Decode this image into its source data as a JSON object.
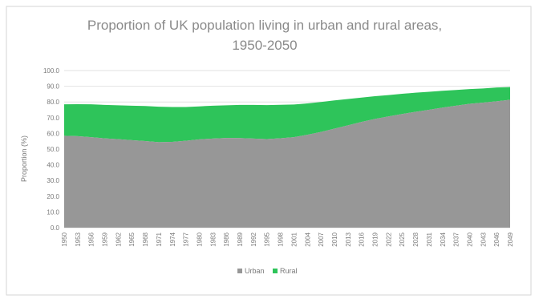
{
  "chart_data": {
    "type": "area",
    "stacked": true,
    "title": "Proportion of UK population living in urban and rural areas, 1950-2050",
    "title_lines": [
      "Proportion of UK population living in urban and rural areas,",
      "1950-2050"
    ],
    "xlabel": "",
    "ylabel": "Proportion (%)",
    "ylim": [
      0,
      100
    ],
    "yticks": [
      "0.0",
      "10.0",
      "20.0",
      "30.0",
      "40.0",
      "50.0",
      "60.0",
      "70.0",
      "80.0",
      "90.0",
      "100.0"
    ],
    "x": [
      1950,
      1953,
      1956,
      1959,
      1962,
      1965,
      1968,
      1971,
      1974,
      1977,
      1980,
      1983,
      1986,
      1989,
      1992,
      1995,
      1998,
      2001,
      2004,
      2007,
      2010,
      2013,
      2016,
      2019,
      2022,
      2025,
      2028,
      2031,
      2034,
      2037,
      2040,
      2043,
      2046,
      2049
    ],
    "series": [
      {
        "name": "Urban",
        "color": "#979797",
        "values": [
          58.5,
          58.2,
          57.6,
          56.8,
          56.3,
          55.7,
          55.1,
          54.4,
          54.6,
          55.3,
          56.2,
          56.7,
          57.1,
          57.0,
          56.7,
          56.4,
          56.9,
          57.6,
          59.1,
          60.9,
          63.0,
          65.1,
          67.3,
          69.2,
          70.8,
          72.3,
          73.7,
          75.0,
          76.4,
          77.6,
          78.8,
          79.6,
          80.4,
          81.4
        ]
      },
      {
        "name": "Rural",
        "color": "#2ec45a",
        "values": [
          20.0,
          20.4,
          20.9,
          21.3,
          21.6,
          21.9,
          22.3,
          22.6,
          22.2,
          21.5,
          21.0,
          20.9,
          20.8,
          21.1,
          21.4,
          21.6,
          21.3,
          20.8,
          20.0,
          19.1,
          18.0,
          16.8,
          15.5,
          14.5,
          13.6,
          12.9,
          12.2,
          11.5,
          10.7,
          10.0,
          9.4,
          9.0,
          8.8,
          8.1
        ]
      }
    ],
    "grid": true,
    "legend_position": "bottom"
  }
}
